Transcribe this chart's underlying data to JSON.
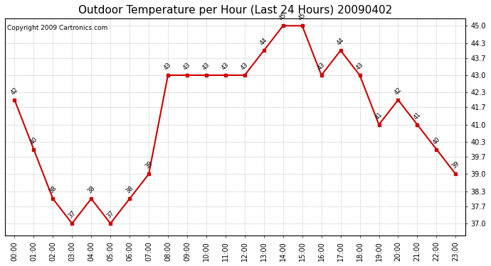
{
  "title": "Outdoor Temperature per Hour (Last 24 Hours) 20090402",
  "copyright": "Copyright 2009 Cartronics.com",
  "hours": [
    "00:00",
    "01:00",
    "02:00",
    "03:00",
    "04:00",
    "05:00",
    "06:00",
    "07:00",
    "08:00",
    "09:00",
    "10:00",
    "11:00",
    "12:00",
    "13:00",
    "14:00",
    "15:00",
    "16:00",
    "17:00",
    "18:00",
    "19:00",
    "20:00",
    "21:00",
    "22:00",
    "23:00"
  ],
  "values": [
    42,
    40,
    38,
    37,
    38,
    37,
    38,
    39,
    43,
    43,
    43,
    43,
    43,
    44,
    45,
    45,
    43,
    44,
    43,
    41,
    42,
    41,
    40,
    39
  ],
  "ylim_min": 37.0,
  "ylim_max": 45.0,
  "yticks": [
    37.0,
    37.7,
    38.3,
    39.0,
    39.7,
    40.3,
    41.0,
    41.7,
    42.3,
    43.0,
    43.7,
    44.3,
    45.0
  ],
  "line_color": "#cc0000",
  "marker": "s",
  "marker_size": 3,
  "grid_color": "#bbbbbb",
  "title_fontsize": 11,
  "tick_fontsize": 7,
  "annot_fontsize": 6,
  "copyright_fontsize": 6.5
}
